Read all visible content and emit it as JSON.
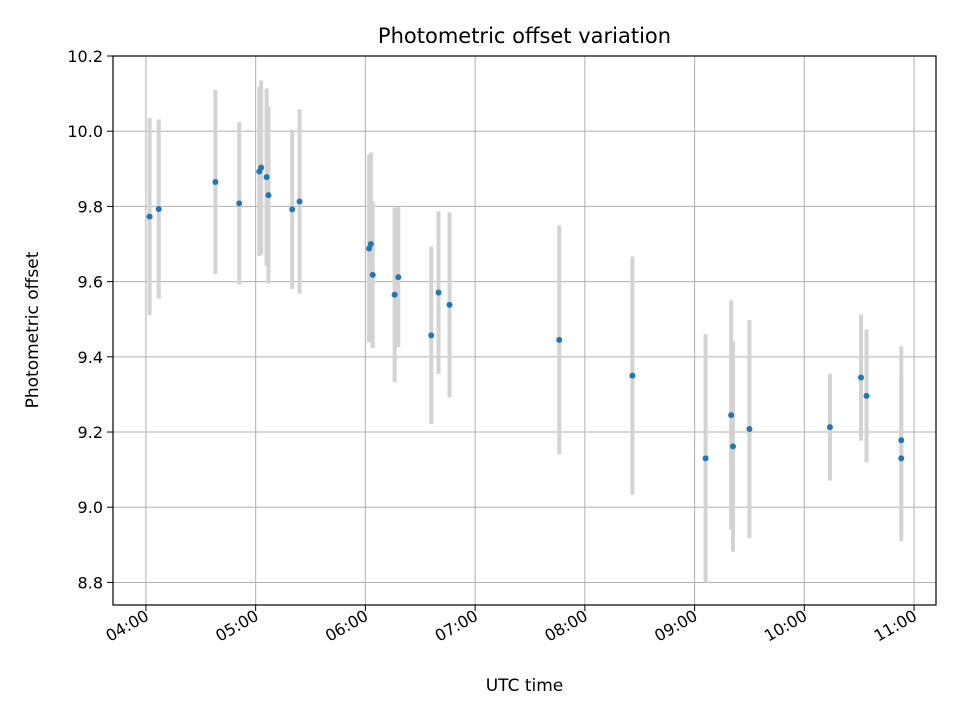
{
  "chart_data": {
    "type": "scatter",
    "title": "Photometric offset variation",
    "xlabel": "UTC time",
    "ylabel": "Photometric offset",
    "x_type": "time",
    "xlim": [
      "03:42",
      "11:12"
    ],
    "ylim": [
      8.74,
      10.2
    ],
    "x_ticks": [
      "04:00",
      "05:00",
      "06:00",
      "07:00",
      "08:00",
      "09:00",
      "10:00",
      "11:00"
    ],
    "y_ticks": [
      "8.8",
      "9.0",
      "9.2",
      "9.4",
      "9.6",
      "9.8",
      "10.0",
      "10.2"
    ],
    "grid": true,
    "legend": "none",
    "colors": {
      "point": "#1f77b4",
      "errorbar": "#d3d3d3",
      "grid": "#b0b0b0"
    },
    "series": [
      {
        "points": [
          {
            "x": "04:02",
            "y": 9.773,
            "yerr": 0.262
          },
          {
            "x": "04:07",
            "y": 9.793,
            "yerr": 0.238
          },
          {
            "x": "04:38",
            "y": 9.865,
            "yerr": 0.245
          },
          {
            "x": "04:51",
            "y": 9.808,
            "yerr": 0.216
          },
          {
            "x": "05:02",
            "y": 9.893,
            "yerr": 0.225
          },
          {
            "x": "05:03",
            "y": 9.903,
            "yerr": 0.232
          },
          {
            "x": "05:06",
            "y": 9.878,
            "yerr": 0.236
          },
          {
            "x": "05:07",
            "y": 9.83,
            "yerr": 0.235
          },
          {
            "x": "05:20",
            "y": 9.792,
            "yerr": 0.212
          },
          {
            "x": "05:24",
            "y": 9.813,
            "yerr": 0.245
          },
          {
            "x": "06:02",
            "y": 9.688,
            "yerr": 0.25
          },
          {
            "x": "06:03",
            "y": 9.7,
            "yerr": 0.243
          },
          {
            "x": "06:04",
            "y": 9.618,
            "yerr": 0.195
          },
          {
            "x": "06:16",
            "y": 9.565,
            "yerr": 0.232
          },
          {
            "x": "06:18",
            "y": 9.612,
            "yerr": 0.186
          },
          {
            "x": "06:36",
            "y": 9.457,
            "yerr": 0.236
          },
          {
            "x": "06:40",
            "y": 9.571,
            "yerr": 0.216
          },
          {
            "x": "06:46",
            "y": 9.538,
            "yerr": 0.246
          },
          {
            "x": "07:46",
            "y": 9.445,
            "yerr": 0.305
          },
          {
            "x": "08:26",
            "y": 9.35,
            "yerr": 0.317
          },
          {
            "x": "09:06",
            "y": 9.13,
            "yerr": 0.33
          },
          {
            "x": "09:20",
            "y": 9.245,
            "yerr": 0.305
          },
          {
            "x": "09:21",
            "y": 9.162,
            "yerr": 0.28
          },
          {
            "x": "09:30",
            "y": 9.208,
            "yerr": 0.29
          },
          {
            "x": "10:14",
            "y": 9.213,
            "yerr": 0.142
          },
          {
            "x": "10:31",
            "y": 9.345,
            "yerr": 0.168
          },
          {
            "x": "10:34",
            "y": 9.296,
            "yerr": 0.177
          },
          {
            "x": "10:53",
            "y": 9.178,
            "yerr": 0.25
          },
          {
            "x": "10:53",
            "y": 9.13,
            "yerr": 0.22
          }
        ]
      }
    ]
  }
}
